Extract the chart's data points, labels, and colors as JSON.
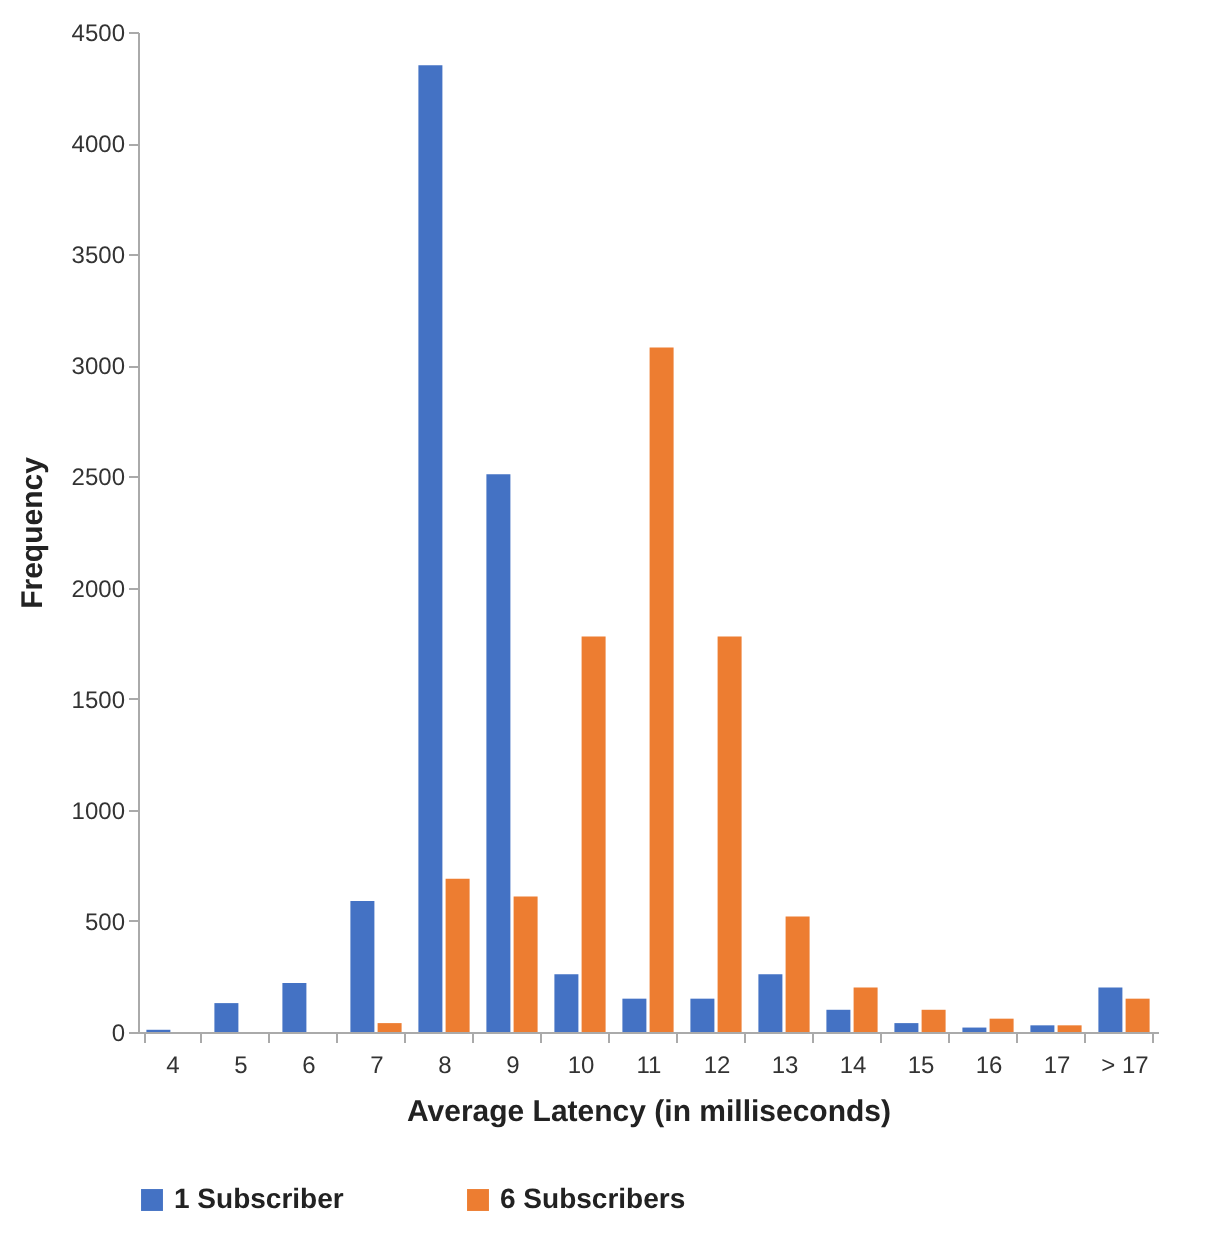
{
  "chart_data": {
    "type": "bar",
    "xlabel": "Average Latency (in milliseconds)",
    "ylabel": "Frequency",
    "categories": [
      "4",
      "5",
      "6",
      "7",
      "8",
      "9",
      "10",
      "11",
      "12",
      "13",
      "14",
      "15",
      "16",
      "17",
      "> 17"
    ],
    "series": [
      {
        "name": "1 Subscriber",
        "color": "#4472c4",
        "values": [
          10,
          130,
          220,
          590,
          4350,
          2510,
          260,
          150,
          150,
          260,
          100,
          40,
          20,
          30,
          200
        ]
      },
      {
        "name": "6 Subscribers",
        "color": "#ed7d31",
        "values": [
          0,
          0,
          0,
          40,
          690,
          610,
          1780,
          3080,
          1780,
          520,
          200,
          100,
          60,
          30,
          150
        ]
      }
    ],
    "ylim": [
      0,
      4500
    ],
    "yticks": [
      0,
      500,
      1000,
      1500,
      2000,
      2500,
      3000,
      3500,
      4000,
      4500
    ],
    "grid": false,
    "legend": "bottom"
  }
}
